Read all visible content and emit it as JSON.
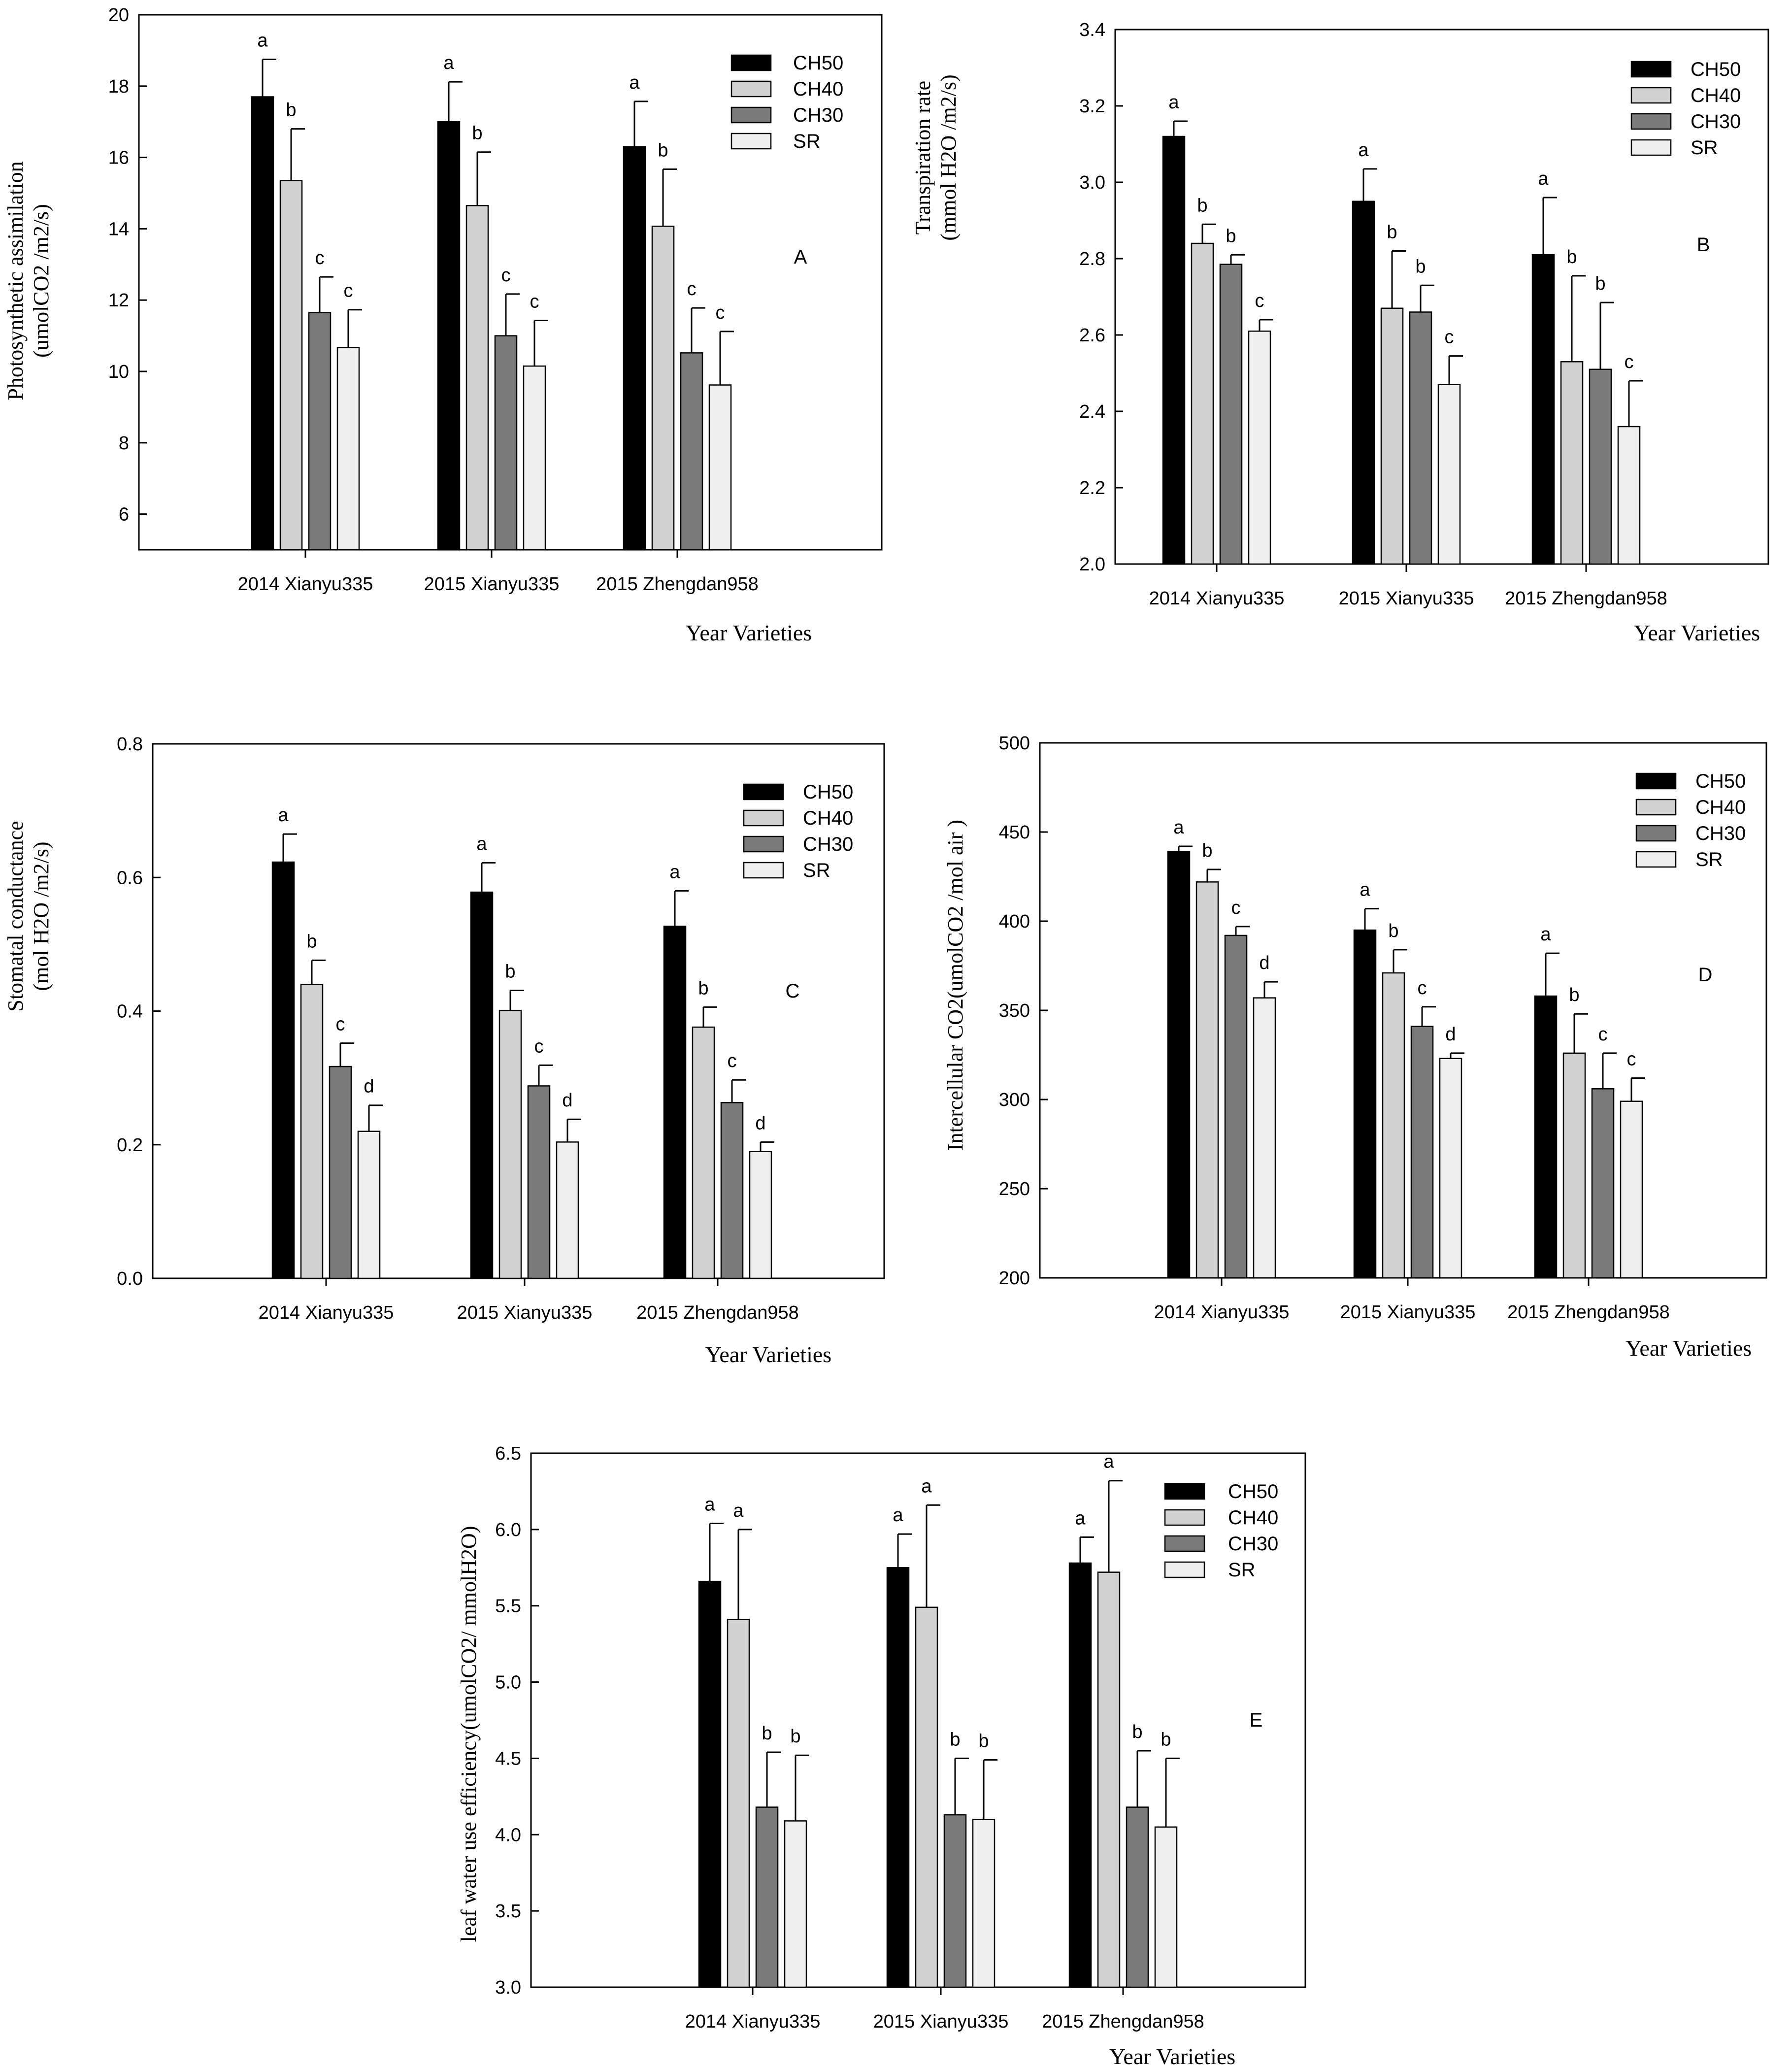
{
  "figure": {
    "series_names": [
      "CH50",
      "CH40",
      "CH30",
      "SR"
    ],
    "series_colors": [
      "#000000",
      "#d2d2d2",
      "#7a7a7a",
      "#efefef"
    ]
  },
  "chart_data": [
    {
      "id": "A",
      "type": "bar",
      "panel_label": "A",
      "categories": [
        "2014 Xianyu335",
        "2015 Xianyu335",
        "2015 Zhengdan958"
      ],
      "xlabel": "Year Varieties",
      "ylabel_lines": [
        "Photosynthetic assimilation",
        "(umolCO2 /m2/s)"
      ],
      "ylim": [
        5,
        20
      ],
      "yticks": [
        6,
        8,
        10,
        12,
        14,
        16,
        18,
        20
      ],
      "ytick_labels": [
        "6",
        "8",
        "10",
        "12",
        "14",
        "16",
        "18",
        "20"
      ],
      "series": [
        {
          "name": "CH50",
          "values": [
            17.7,
            17.0,
            16.3
          ],
          "errors": [
            1.05,
            1.12,
            1.27
          ],
          "letters": [
            "a",
            "a",
            "a"
          ]
        },
        {
          "name": "CH40",
          "values": [
            15.35,
            14.65,
            14.07
          ],
          "errors": [
            1.45,
            1.5,
            1.6
          ],
          "letters": [
            "b",
            "b",
            "b"
          ]
        },
        {
          "name": "CH30",
          "values": [
            11.65,
            11.0,
            10.52
          ],
          "errors": [
            1.0,
            1.17,
            1.26
          ],
          "letters": [
            "c",
            "c",
            "c"
          ]
        },
        {
          "name": "SR",
          "values": [
            10.67,
            10.15,
            9.62
          ],
          "errors": [
            1.06,
            1.28,
            1.5
          ],
          "letters": [
            "c",
            "c",
            "c"
          ]
        }
      ]
    },
    {
      "id": "B",
      "type": "bar",
      "panel_label": "B",
      "categories": [
        "2014 Xianyu335",
        "2015 Xianyu335",
        "2015 Zhengdan958"
      ],
      "xlabel": "Year Varieties",
      "ylabel_lines": [
        "Transpiration rate",
        "(mmol H2O /m2/s)"
      ],
      "ylim": [
        2.0,
        3.4
      ],
      "yticks": [
        2.0,
        2.2,
        2.4,
        2.6,
        2.8,
        3.0,
        3.2,
        3.4
      ],
      "ytick_labels": [
        "2.0",
        "2.2",
        "2.4",
        "2.6",
        "2.8",
        "3.0",
        "3.2",
        "3.4"
      ],
      "series": [
        {
          "name": "CH50",
          "values": [
            3.12,
            2.95,
            2.81
          ],
          "errors": [
            0.04,
            0.085,
            0.15
          ],
          "letters": [
            "a",
            "a",
            "a"
          ]
        },
        {
          "name": "CH40",
          "values": [
            2.84,
            2.67,
            2.53
          ],
          "errors": [
            0.05,
            0.15,
            0.225
          ],
          "letters": [
            "b",
            "b",
            "b"
          ]
        },
        {
          "name": "CH30",
          "values": [
            2.785,
            2.66,
            2.51
          ],
          "errors": [
            0.025,
            0.07,
            0.175
          ],
          "letters": [
            "b",
            "b",
            "b"
          ]
        },
        {
          "name": "SR",
          "values": [
            2.61,
            2.47,
            2.36
          ],
          "errors": [
            0.03,
            0.075,
            0.12
          ],
          "letters": [
            "c",
            "c",
            "c"
          ]
        }
      ]
    },
    {
      "id": "C",
      "type": "bar",
      "panel_label": "C",
      "categories": [
        "2014 Xianyu335",
        "2015 Xianyu335",
        "2015 Zhengdan958"
      ],
      "xlabel": "Year Varieties",
      "ylabel_lines": [
        "Stomatal conductance",
        "(mol H2O /m2/s)"
      ],
      "ylim": [
        0.0,
        0.8
      ],
      "yticks": [
        0.0,
        0.2,
        0.4,
        0.6,
        0.8
      ],
      "ytick_labels": [
        "0.0",
        "0.2",
        "0.4",
        "0.6",
        "0.8"
      ],
      "series": [
        {
          "name": "CH50",
          "values": [
            0.623,
            0.578,
            0.527
          ],
          "errors": [
            0.042,
            0.044,
            0.053
          ],
          "letters": [
            "a",
            "a",
            "a"
          ]
        },
        {
          "name": "CH40",
          "values": [
            0.44,
            0.401,
            0.376
          ],
          "errors": [
            0.036,
            0.03,
            0.03
          ],
          "letters": [
            "b",
            "b",
            "b"
          ]
        },
        {
          "name": "CH30",
          "values": [
            0.317,
            0.288,
            0.263
          ],
          "errors": [
            0.035,
            0.031,
            0.034
          ],
          "letters": [
            "c",
            "c",
            "c"
          ]
        },
        {
          "name": "SR",
          "values": [
            0.22,
            0.204,
            0.19
          ],
          "errors": [
            0.039,
            0.034,
            0.014
          ],
          "letters": [
            "d",
            "d",
            "d"
          ]
        }
      ]
    },
    {
      "id": "D",
      "type": "bar",
      "panel_label": "D",
      "categories": [
        "2014 Xianyu335",
        "2015 Xianyu335",
        "2015 Zhengdan958"
      ],
      "xlabel": "Year Varieties",
      "ylabel_lines": [
        "Intercellular CO2(umolCO2 /mol air )"
      ],
      "ylim": [
        200,
        500
      ],
      "yticks": [
        200,
        250,
        300,
        350,
        400,
        450,
        500
      ],
      "ytick_labels": [
        "200",
        "250",
        "300",
        "350",
        "400",
        "450",
        "500"
      ],
      "series": [
        {
          "name": "CH50",
          "values": [
            439,
            395,
            358
          ],
          "errors": [
            3,
            12,
            24
          ],
          "letters": [
            "a",
            "a",
            "a"
          ]
        },
        {
          "name": "CH40",
          "values": [
            422,
            371,
            326
          ],
          "errors": [
            7,
            13,
            22
          ],
          "letters": [
            "b",
            "b",
            "b"
          ]
        },
        {
          "name": "CH30",
          "values": [
            392,
            341,
            306
          ],
          "errors": [
            5,
            11,
            20
          ],
          "letters": [
            "c",
            "c",
            "c"
          ]
        },
        {
          "name": "SR",
          "values": [
            357,
            323,
            299
          ],
          "errors": [
            9,
            3,
            13
          ],
          "letters": [
            "d",
            "d",
            "c"
          ]
        }
      ]
    },
    {
      "id": "E",
      "type": "bar",
      "panel_label": "E",
      "categories": [
        "2014 Xianyu335",
        "2015 Xianyu335",
        "2015 Zhengdan958"
      ],
      "xlabel": "Year Varieties",
      "ylabel_lines": [
        "leaf water use efficiency(umolCO2/ mmolH2O)"
      ],
      "ylim": [
        3.0,
        6.5
      ],
      "yticks": [
        3.0,
        3.5,
        4.0,
        4.5,
        5.0,
        5.5,
        6.0,
        6.5
      ],
      "ytick_labels": [
        "3.0",
        "3.5",
        "4.0",
        "4.5",
        "5.0",
        "5.5",
        "6.0",
        "6.5"
      ],
      "series": [
        {
          "name": "CH50",
          "values": [
            5.66,
            5.75,
            5.78
          ],
          "errors": [
            0.38,
            0.22,
            0.17
          ],
          "letters": [
            "a",
            "a",
            "a"
          ]
        },
        {
          "name": "CH40",
          "values": [
            5.41,
            5.49,
            5.72
          ],
          "errors": [
            0.59,
            0.67,
            0.6
          ],
          "letters": [
            "a",
            "a",
            "a"
          ]
        },
        {
          "name": "CH30",
          "values": [
            4.18,
            4.13,
            4.18
          ],
          "errors": [
            0.36,
            0.37,
            0.37
          ],
          "letters": [
            "b",
            "b",
            "b"
          ]
        },
        {
          "name": "SR",
          "values": [
            4.09,
            4.1,
            4.05
          ],
          "errors": [
            0.43,
            0.39,
            0.45
          ],
          "letters": [
            "b",
            "b",
            "b"
          ]
        }
      ]
    }
  ]
}
